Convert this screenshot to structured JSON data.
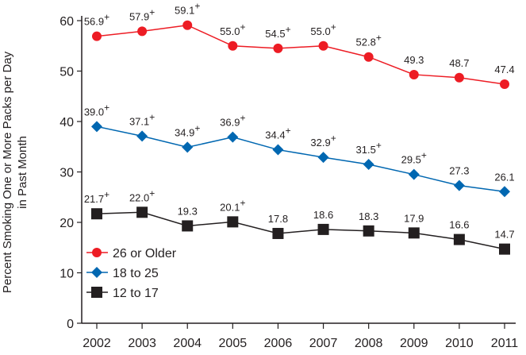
{
  "chart_data": {
    "type": "line",
    "title": "",
    "ylabel": [
      "Percent Smoking One or More Packs per Day",
      "in Past Month"
    ],
    "xlabel": "",
    "ylim": [
      0,
      60
    ],
    "yticks": [
      0,
      10,
      20,
      30,
      40,
      50,
      60
    ],
    "x": [
      2002,
      2003,
      2004,
      2005,
      2006,
      2007,
      2008,
      2009,
      2010,
      2011
    ],
    "grid": false,
    "legend_position": "bottom-left",
    "significance_marker": "+",
    "series": [
      {
        "name": "26 or Older",
        "color": "#ed1c24",
        "marker": "circle",
        "values": [
          56.9,
          57.9,
          59.1,
          55.0,
          54.5,
          55.0,
          52.8,
          49.3,
          48.7,
          47.4
        ],
        "labels": [
          "56.9",
          "57.9",
          "59.1",
          "55.0",
          "54.5",
          "55.0",
          "52.8",
          "49.3",
          "48.7",
          "47.4"
        ],
        "significant": [
          true,
          true,
          true,
          true,
          true,
          true,
          true,
          false,
          false,
          false
        ]
      },
      {
        "name": "18 to 25",
        "color": "#0067b1",
        "marker": "diamond",
        "values": [
          39.0,
          37.1,
          34.9,
          36.9,
          34.4,
          32.9,
          31.5,
          29.5,
          27.3,
          26.1
        ],
        "labels": [
          "39.0",
          "37.1",
          "34.9",
          "36.9",
          "34.4",
          "32.9",
          "31.5",
          "29.5",
          "27.3",
          "26.1"
        ],
        "significant": [
          true,
          true,
          true,
          true,
          true,
          true,
          true,
          true,
          false,
          false
        ]
      },
      {
        "name": "12 to 17",
        "color": "#231f20",
        "marker": "square",
        "values": [
          21.7,
          22.0,
          19.3,
          20.1,
          17.8,
          18.6,
          18.3,
          17.9,
          16.6,
          14.7
        ],
        "labels": [
          "21.7",
          "22.0",
          "19.3",
          "20.1",
          "17.8",
          "18.6",
          "18.3",
          "17.9",
          "16.6",
          "14.7"
        ],
        "significant": [
          true,
          true,
          false,
          true,
          false,
          false,
          false,
          false,
          false,
          false
        ]
      }
    ]
  }
}
